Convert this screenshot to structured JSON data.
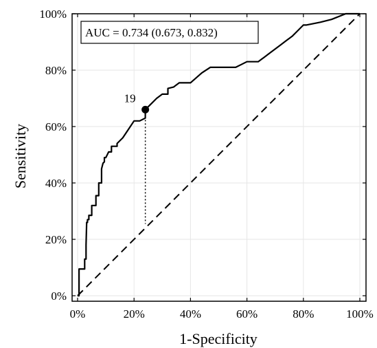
{
  "chart_data": {
    "type": "line",
    "title": "",
    "xlabel": "1-Specificity",
    "ylabel": "Sensitivity",
    "xlim": [
      0,
      100
    ],
    "ylim": [
      0,
      100
    ],
    "x_ticks": [
      "0%",
      "20%",
      "40%",
      "60%",
      "80%",
      "100%"
    ],
    "y_ticks": [
      "0%",
      "20%",
      "40%",
      "60%",
      "80%",
      "100%"
    ],
    "grid": true,
    "annotation": "AUC = 0.734 (0.673, 0.832)",
    "series": [
      {
        "style": "solid",
        "x": [
          0,
          0.5,
          0.5,
          2.5,
          2.5,
          3.0,
          3.0,
          3.2,
          3.5,
          3.5,
          4.0,
          4.0,
          5.0,
          5.0,
          6.5,
          6.5,
          7.5,
          7.5,
          8.5,
          8.5,
          9.0,
          9.5,
          9.5,
          10.0,
          10.5,
          11.0,
          12.0,
          12.0,
          14.0,
          14.0,
          16.0,
          18.0,
          20.0,
          22.0,
          24.0,
          24.0,
          26.0,
          28.0,
          30.0,
          32.0,
          32.0,
          34.0,
          36.0,
          38.0,
          40.0,
          44.0,
          47.0,
          50.0,
          52.0,
          54.0,
          56.0,
          58.0,
          60.0,
          62.0,
          64.0,
          66.0,
          68.0,
          72.0,
          74.0,
          76.0,
          78.0,
          80.0,
          81.0,
          86.0,
          90.0,
          95.0,
          97.0,
          100.0
        ],
        "y": [
          0,
          0,
          9.5,
          9.5,
          13.0,
          13.0,
          18.0,
          26.0,
          26.0,
          27.0,
          27.0,
          28.5,
          28.5,
          32.0,
          32.0,
          35.5,
          35.5,
          40.0,
          40.0,
          45.0,
          47.0,
          47.5,
          49.0,
          49.0,
          50.0,
          51.0,
          51.0,
          53.0,
          53.0,
          54.0,
          56.0,
          59.0,
          62.0,
          62.0,
          63.0,
          66.0,
          68.0,
          70.0,
          71.5,
          71.5,
          73.5,
          74.0,
          75.5,
          75.5,
          75.5,
          79.0,
          81.0,
          81.0,
          81.0,
          81.0,
          81.0,
          82.0,
          83.0,
          83.0,
          83.0,
          84.5,
          86.0,
          89.0,
          90.5,
          92.0,
          94.0,
          96.0,
          96.0,
          97.0,
          98.0,
          100.0,
          100.0,
          100.0
        ]
      },
      {
        "style": "dashed",
        "x": [
          0,
          100
        ],
        "y": [
          0,
          100
        ]
      }
    ],
    "highlight_point": {
      "label": "19",
      "x": 24.0,
      "y": 66.0,
      "drop_to_y": 25.5
    }
  }
}
